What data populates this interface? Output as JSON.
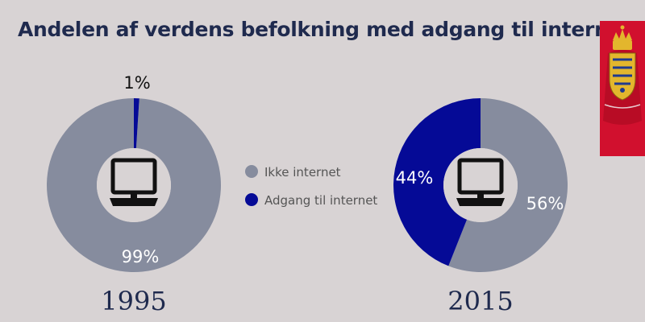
{
  "title": "Andelen af verdens befolkning med adgang til internet",
  "colors": {
    "background": "#d8d3d4",
    "ikke_internet": "#868c9e",
    "internet": "#050a96",
    "logo_banner": "#d1102e",
    "title_text": "#1f2a4e"
  },
  "icons": {
    "center": "laptop-icon",
    "logo": "royal-coat-of-arms-logo"
  },
  "legend": [
    {
      "label": "Ikke internet",
      "color": "#868c9e"
    },
    {
      "label": "Adgang til internet",
      "color": "#050a96"
    }
  ],
  "chart_data": [
    {
      "type": "pie",
      "year": "1995",
      "labels": [
        "Ikke internet",
        "Adgang til internet"
      ],
      "values": [
        99,
        1
      ],
      "value_labels": [
        "99%",
        "1%"
      ]
    },
    {
      "type": "pie",
      "year": "2015",
      "labels": [
        "Ikke internet",
        "Adgang til internet"
      ],
      "values": [
        56,
        44
      ],
      "value_labels": [
        "56%",
        "44%"
      ]
    }
  ]
}
